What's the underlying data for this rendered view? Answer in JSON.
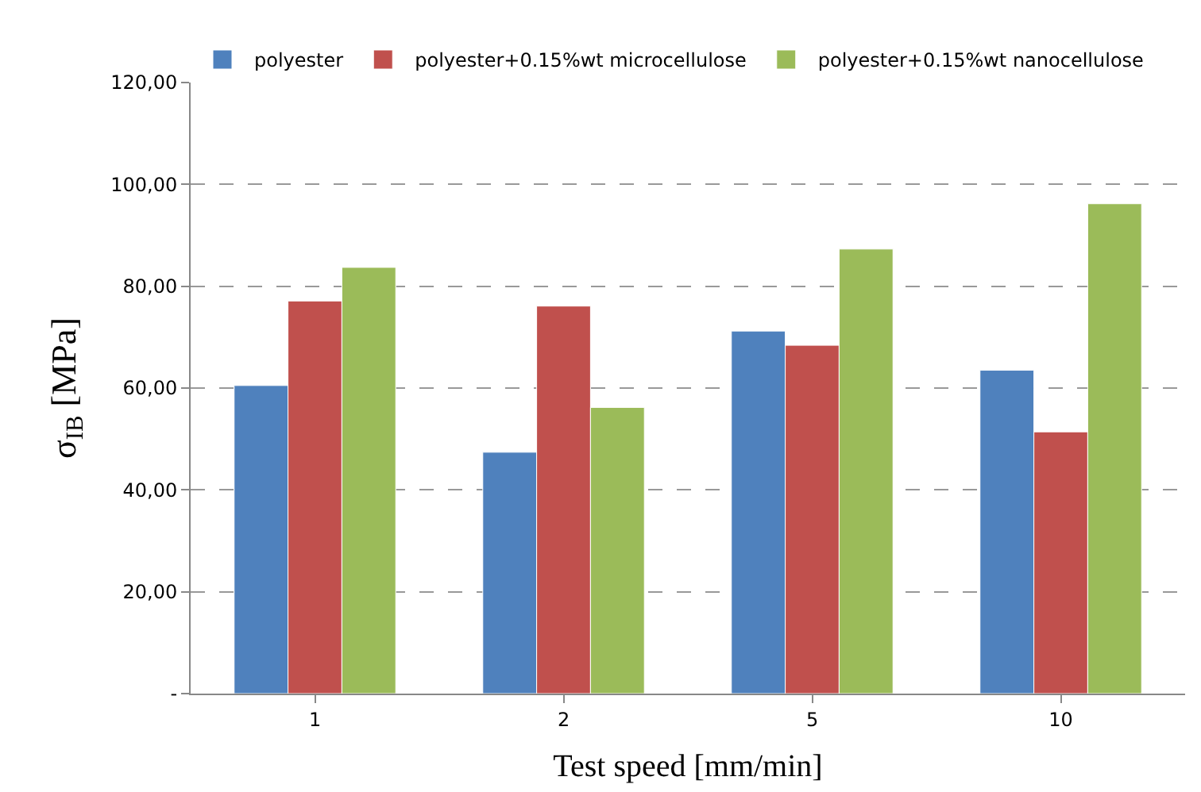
{
  "chart_data": {
    "type": "bar",
    "xlabel": "Test speed [mm/min]",
    "ylabel": "σ$_{IB}$ [MPa]",
    "categories": [
      "1",
      "2",
      "5",
      "10"
    ],
    "series": [
      {
        "name": "polyester",
        "color": "#4f81bd",
        "values": [
          60.5,
          47.4,
          71.2,
          63.5
        ]
      },
      {
        "name": "polyester+0.15%wt microcellulose",
        "color": "#c0504d",
        "values": [
          77.1,
          76.1,
          68.4,
          51.4
        ]
      },
      {
        "name": "polyester+0.15%wt nanocellulose",
        "color": "#9bbb59",
        "values": [
          83.7,
          56.2,
          87.3,
          96.2
        ]
      }
    ],
    "ylim": [
      0,
      120
    ],
    "yticks": [
      {
        "value": 0,
        "label": "-"
      },
      {
        "value": 20,
        "label": "20,00"
      },
      {
        "value": 40,
        "label": "40,00"
      },
      {
        "value": 60,
        "label": "60,00"
      },
      {
        "value": 80,
        "label": "80,00"
      },
      {
        "value": 100,
        "label": "100,00"
      },
      {
        "value": 120,
        "label": "120,00"
      }
    ],
    "grid": "y",
    "legend": "top"
  }
}
